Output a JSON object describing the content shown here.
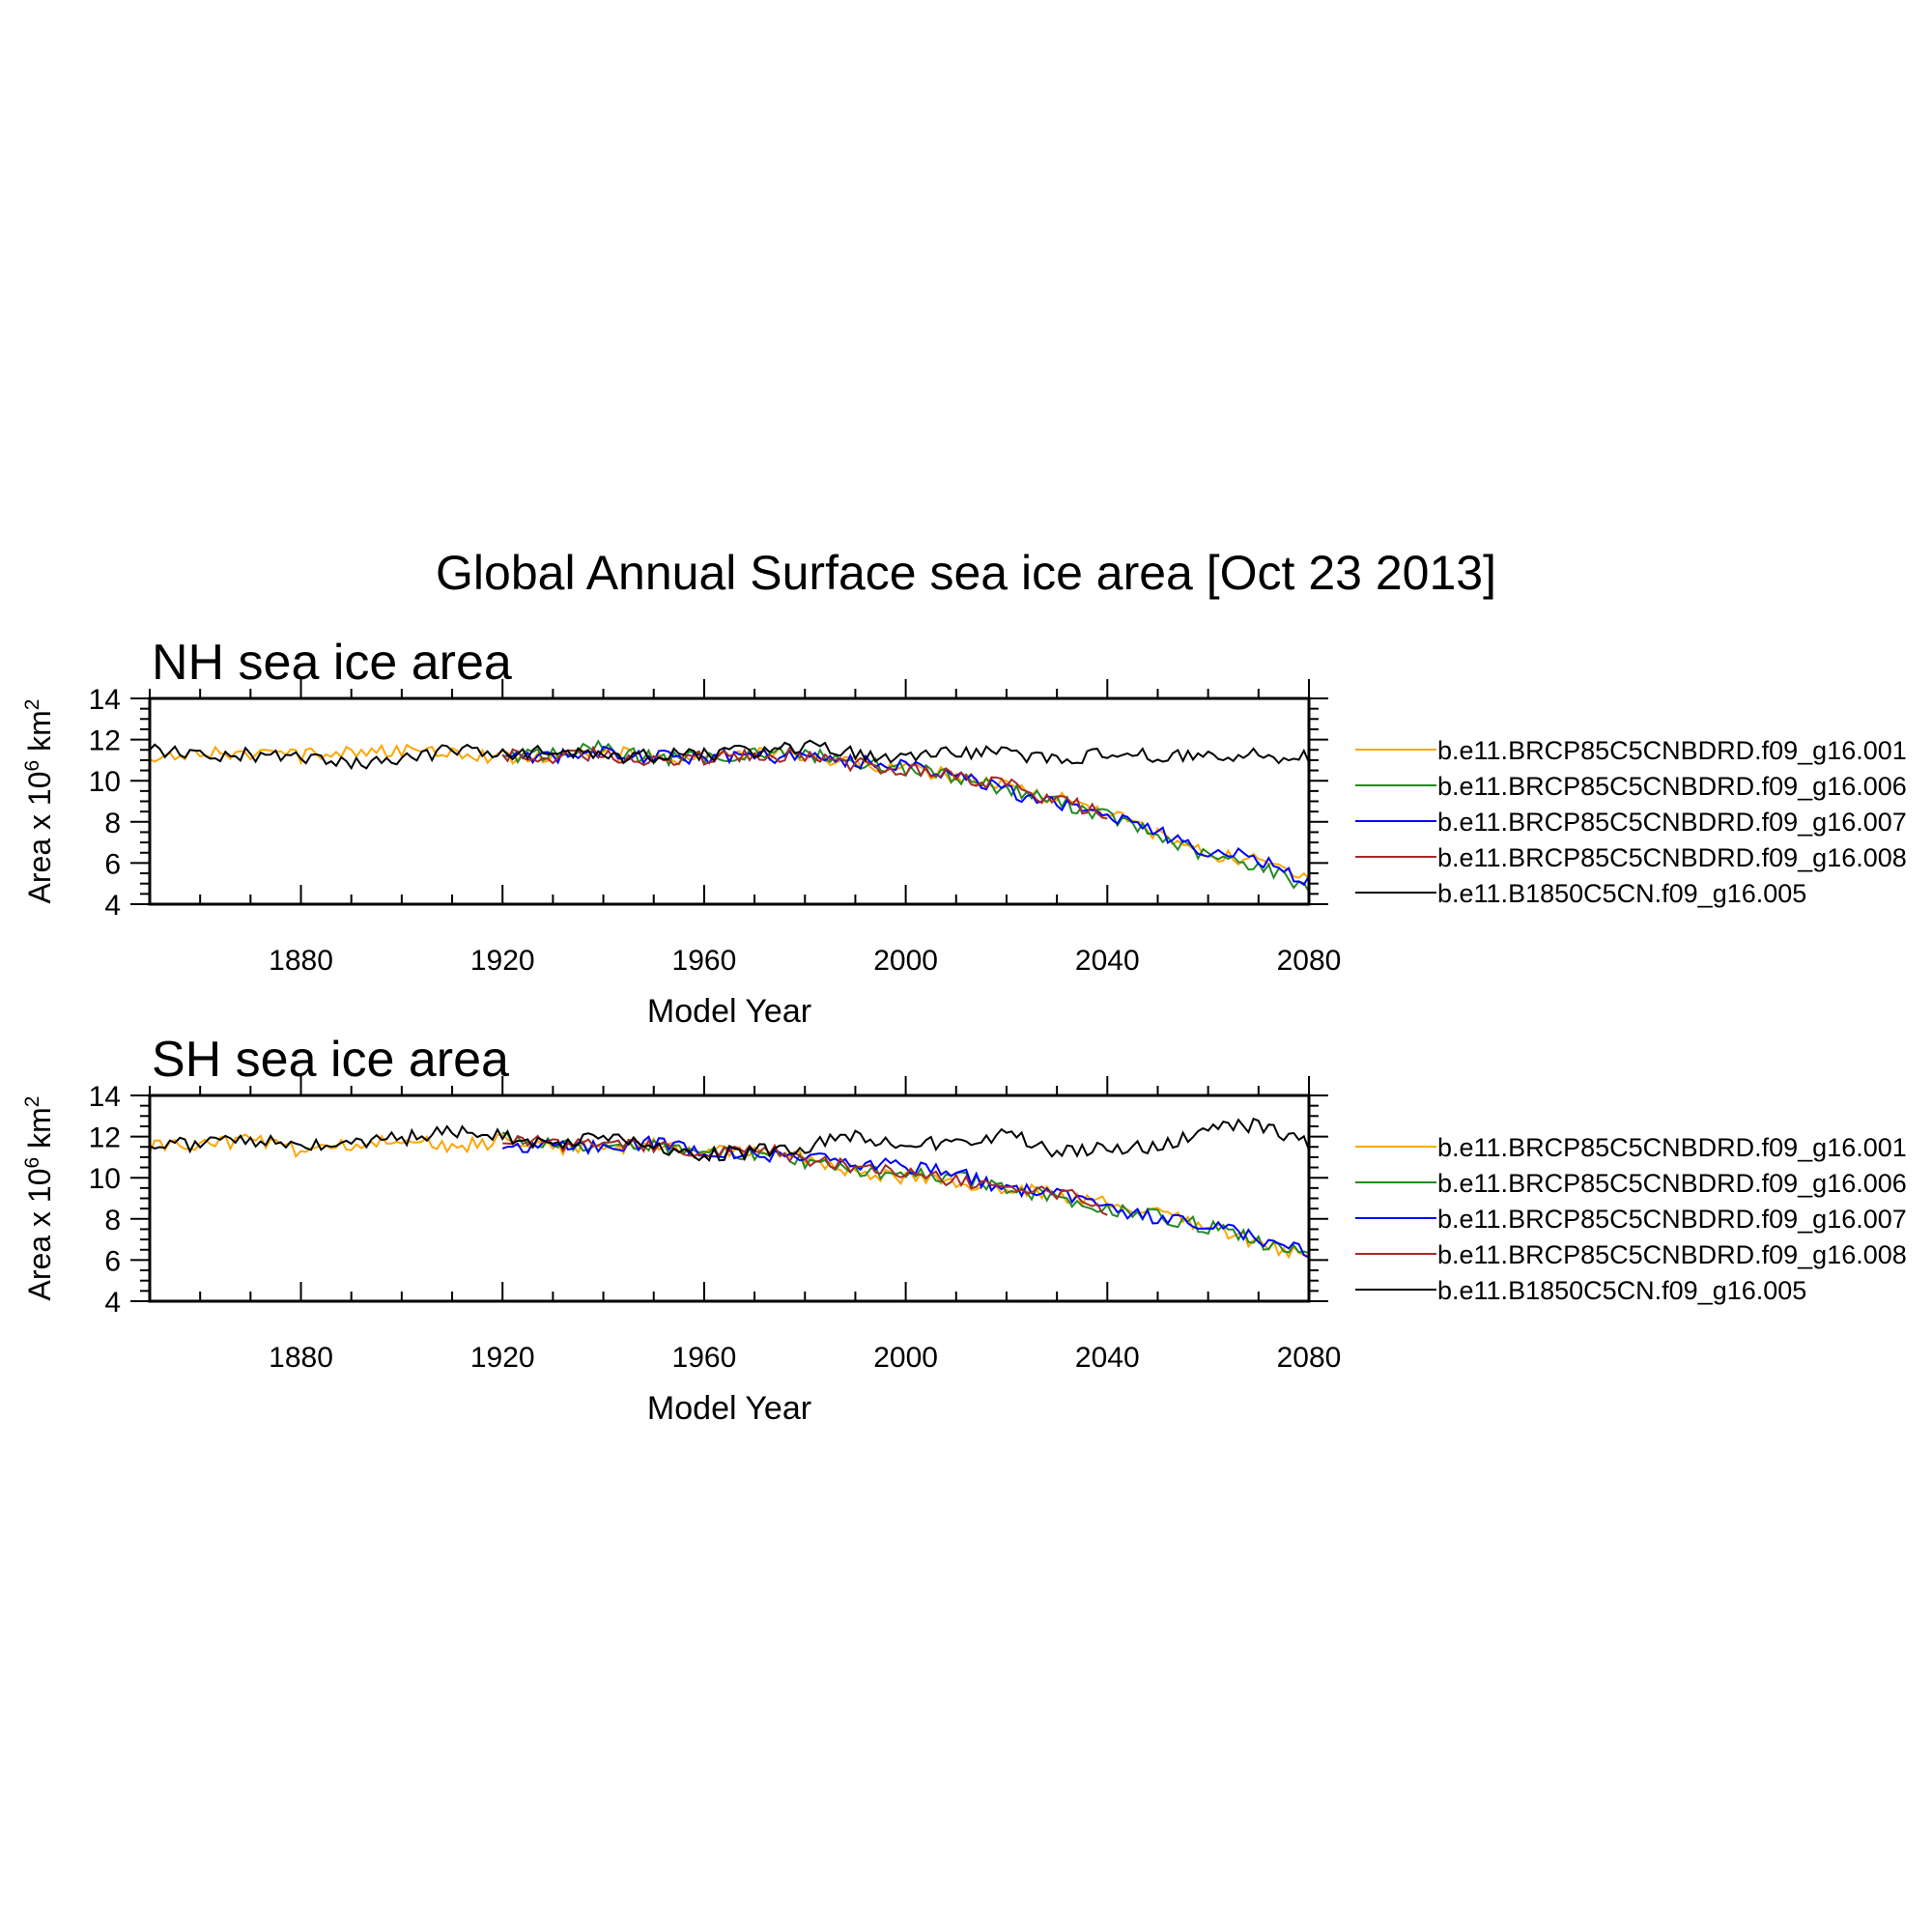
{
  "page": {
    "title": "Global Annual Surface sea ice area [Oct 23 2013]"
  },
  "colors": {
    "b.e11.BRCP85C5CNBDRD.f09_g16.001": "#ffa500",
    "b.e11.BRCP85C5CNBDRD.f09_g16.006": "#228b22",
    "b.e11.BRCP85C5CNBDRD.f09_g16.007": "#0000ff",
    "b.e11.BRCP85C5CNBDRD.f09_g16.008": "#a52a2a",
    "b.e11.B1850C5CN.f09_g16.005": "#000000"
  },
  "chart_data": [
    {
      "type": "line",
      "title": "NH sea ice area",
      "xlabel": "Model Year",
      "ylabel": "Area x 10^6 km^2",
      "xlim": [
        1850,
        2080
      ],
      "ylim": [
        4,
        14
      ],
      "xticks": [
        1880,
        1920,
        1960,
        2000,
        2040,
        2080
      ],
      "yticks": [
        4,
        6,
        8,
        10,
        12,
        14
      ],
      "legend": "right",
      "series": [
        {
          "name": "b.e11.BRCP85C5CNBDRD.f09_g16.001",
          "color": "#ffa500",
          "x": [
            1850,
            1860,
            1870,
            1880,
            1890,
            1900,
            1910,
            1920,
            1930,
            1940,
            1950,
            1960,
            1970,
            1980,
            1990,
            2000,
            2010,
            2020,
            2030,
            2040,
            2050,
            2060,
            2070,
            2080
          ],
          "y": [
            11.2,
            11.4,
            11.3,
            11.2,
            11.5,
            11.4,
            11.5,
            11.1,
            11.2,
            11.4,
            11.1,
            11.1,
            11.3,
            11.2,
            10.9,
            10.6,
            10.2,
            9.7,
            9.2,
            8.5,
            7.4,
            6.4,
            6.1,
            5.4
          ]
        },
        {
          "name": "b.e11.BRCP85C5CNBDRD.f09_g16.006",
          "color": "#228b22",
          "x": [
            1920,
            1930,
            1940,
            1950,
            1960,
            1970,
            1980,
            1990,
            2000,
            2010,
            2020,
            2030,
            2040,
            2050,
            2060,
            2070,
            2080
          ],
          "y": [
            11.1,
            11.3,
            11.6,
            11.1,
            11.1,
            11.4,
            11.3,
            10.9,
            10.6,
            10.2,
            9.6,
            9.0,
            8.3,
            7.3,
            6.3,
            5.9,
            4.8
          ]
        },
        {
          "name": "b.e11.BRCP85C5CNBDRD.f09_g16.007",
          "color": "#0000ff",
          "x": [
            1920,
            1930,
            1940,
            1950,
            1960,
            1970,
            1980,
            1990,
            2000,
            2010,
            2020,
            2030,
            2040,
            2050,
            2060,
            2070,
            2080
          ],
          "y": [
            11.3,
            11.2,
            11.4,
            11.1,
            11.2,
            11.2,
            11.2,
            10.9,
            10.8,
            10.3,
            9.5,
            8.9,
            8.4,
            7.5,
            6.6,
            6.2,
            5.1
          ]
        },
        {
          "name": "b.e11.BRCP85C5CNBDRD.f09_g16.008",
          "color": "#a52a2a",
          "x": [
            1920,
            1930,
            1940,
            1950,
            1960,
            1970,
            1980,
            1990,
            2000,
            2010,
            2020,
            2030,
            2040
          ],
          "y": [
            11.2,
            11.2,
            11.3,
            11.0,
            11.1,
            11.3,
            11.2,
            10.8,
            10.6,
            10.2,
            9.8,
            9.0,
            8.5
          ]
        },
        {
          "name": "b.e11.B1850C5CN.f09_g16.005",
          "color": "#000000",
          "x": [
            1850,
            1860,
            1870,
            1880,
            1890,
            1900,
            1910,
            1920,
            1930,
            1940,
            1950,
            1960,
            1970,
            1980,
            1990,
            2000,
            2010,
            2020,
            2030,
            2040,
            2050,
            2060,
            2070,
            2080
          ],
          "y": [
            11.6,
            11.2,
            11.3,
            11.0,
            10.8,
            11.0,
            11.5,
            11.3,
            11.4,
            11.1,
            11.2,
            11.3,
            11.4,
            11.7,
            11.3,
            11.2,
            11.4,
            11.4,
            11.0,
            11.3,
            11.2,
            11.3,
            11.2,
            11.2
          ]
        }
      ]
    },
    {
      "type": "line",
      "title": "SH sea ice area",
      "xlabel": "Model Year",
      "ylabel": "Area x 10^6 km^2",
      "xlim": [
        1850,
        2080
      ],
      "ylim": [
        4,
        14
      ],
      "xticks": [
        1880,
        1920,
        1960,
        2000,
        2040,
        2080
      ],
      "yticks": [
        4,
        6,
        8,
        10,
        12,
        14
      ],
      "legend": "right",
      "series": [
        {
          "name": "b.e11.BRCP85C5CNBDRD.f09_g16.001",
          "color": "#ffa500",
          "x": [
            1850,
            1860,
            1870,
            1880,
            1890,
            1900,
            1910,
            1920,
            1930,
            1940,
            1950,
            1960,
            1970,
            1980,
            1990,
            2000,
            2010,
            2020,
            2030,
            2040,
            2050,
            2060,
            2070,
            2080
          ],
          "y": [
            11.5,
            11.6,
            11.8,
            11.3,
            11.6,
            11.8,
            11.5,
            11.8,
            11.5,
            11.4,
            11.6,
            11.2,
            11.3,
            10.9,
            10.3,
            10.0,
            9.8,
            9.5,
            9.2,
            8.8,
            8.2,
            7.6,
            6.8,
            6.1
          ]
        },
        {
          "name": "b.e11.BRCP85C5CNBDRD.f09_g16.006",
          "color": "#228b22",
          "x": [
            1920,
            1930,
            1940,
            1950,
            1960,
            1970,
            1980,
            1990,
            2000,
            2010,
            2020,
            2030,
            2040,
            2050,
            2060,
            2070,
            2080
          ],
          "y": [
            12.0,
            11.6,
            11.7,
            11.6,
            11.3,
            11.2,
            10.8,
            10.3,
            10.2,
            10.0,
            9.5,
            9.0,
            8.5,
            8.1,
            7.6,
            6.9,
            6.4
          ]
        },
        {
          "name": "b.e11.BRCP85C5CNBDRD.f09_g16.007",
          "color": "#0000ff",
          "x": [
            1920,
            1930,
            1940,
            1950,
            1960,
            1970,
            1980,
            1990,
            2000,
            2010,
            2020,
            2030,
            2040,
            2050,
            2060,
            2070,
            2080
          ],
          "y": [
            11.6,
            11.5,
            11.5,
            11.7,
            11.3,
            11.1,
            10.9,
            10.7,
            10.5,
            10.2,
            9.5,
            9.2,
            8.6,
            8.0,
            7.7,
            7.0,
            6.3
          ]
        },
        {
          "name": "b.e11.BRCP85C5CNBDRD.f09_g16.008",
          "color": "#a52a2a",
          "x": [
            1920,
            1930,
            1940,
            1950,
            1960,
            1970,
            1980,
            1990,
            2000,
            2010,
            2020,
            2030,
            2040
          ],
          "y": [
            11.9,
            11.6,
            11.7,
            11.5,
            11.2,
            11.5,
            10.9,
            10.5,
            10.3,
            9.9,
            9.6,
            9.3,
            8.5
          ]
        },
        {
          "name": "b.e11.B1850C5CN.f09_g16.005",
          "color": "#000000",
          "x": [
            1850,
            1860,
            1870,
            1880,
            1890,
            1900,
            1910,
            1920,
            1930,
            1940,
            1950,
            1960,
            1970,
            1980,
            1990,
            2000,
            2010,
            2020,
            2030,
            2040,
            2050,
            2060,
            2070,
            2080
          ],
          "y": [
            11.7,
            11.6,
            11.8,
            11.6,
            11.8,
            11.9,
            12.2,
            12.0,
            11.7,
            11.9,
            11.6,
            11.1,
            11.3,
            11.5,
            12.0,
            11.6,
            11.8,
            12.1,
            11.3,
            11.4,
            11.5,
            12.3,
            12.6,
            11.6
          ]
        }
      ]
    }
  ]
}
